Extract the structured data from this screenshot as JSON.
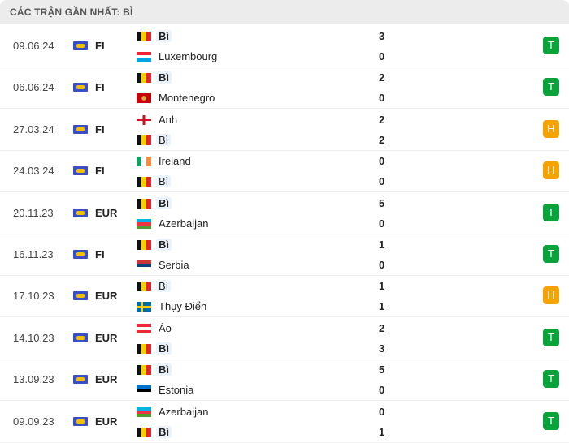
{
  "header": {
    "title": "CÁC TRẬN GẦN NHẤT: BÌ"
  },
  "colors": {
    "win": "#0aa33b",
    "draw": "#f5a300"
  },
  "matches": [
    {
      "date": "09.06.24",
      "comp": "FI",
      "home": {
        "name": "Bì",
        "flag": "belgium",
        "score": "3"
      },
      "away": {
        "name": "Luxembourg",
        "flag": "luxembourg",
        "score": "0"
      },
      "result": "T"
    },
    {
      "date": "06.06.24",
      "comp": "FI",
      "home": {
        "name": "Bì",
        "flag": "belgium",
        "score": "2"
      },
      "away": {
        "name": "Montenegro",
        "flag": "montenegro",
        "score": "0"
      },
      "result": "T"
    },
    {
      "date": "27.03.24",
      "comp": "FI",
      "home": {
        "name": "Anh",
        "flag": "england",
        "score": "2"
      },
      "away": {
        "name": "Bì",
        "flag": "belgium",
        "score": "2"
      },
      "result": "H"
    },
    {
      "date": "24.03.24",
      "comp": "FI",
      "home": {
        "name": "Ireland",
        "flag": "ireland",
        "score": "0"
      },
      "away": {
        "name": "Bì",
        "flag": "belgium",
        "score": "0"
      },
      "result": "H"
    },
    {
      "date": "20.11.23",
      "comp": "EUR",
      "home": {
        "name": "Bì",
        "flag": "belgium",
        "score": "5"
      },
      "away": {
        "name": "Azerbaijan",
        "flag": "azerbaijan",
        "score": "0"
      },
      "result": "T"
    },
    {
      "date": "16.11.23",
      "comp": "FI",
      "home": {
        "name": "Bì",
        "flag": "belgium",
        "score": "1"
      },
      "away": {
        "name": "Serbia",
        "flag": "serbia",
        "score": "0"
      },
      "result": "T"
    },
    {
      "date": "17.10.23",
      "comp": "EUR",
      "home": {
        "name": "Bì",
        "flag": "belgium",
        "score": "1"
      },
      "away": {
        "name": "Thụy Điển",
        "flag": "sweden",
        "score": "1"
      },
      "result": "H"
    },
    {
      "date": "14.10.23",
      "comp": "EUR",
      "home": {
        "name": "Áo",
        "flag": "austria",
        "score": "2"
      },
      "away": {
        "name": "Bì",
        "flag": "belgium",
        "score": "3"
      },
      "result": "T"
    },
    {
      "date": "13.09.23",
      "comp": "EUR",
      "home": {
        "name": "Bì",
        "flag": "belgium",
        "score": "5"
      },
      "away": {
        "name": "Estonia",
        "flag": "estonia",
        "score": "0"
      },
      "result": "T"
    },
    {
      "date": "09.09.23",
      "comp": "EUR",
      "home": {
        "name": "Azerbaijan",
        "flag": "azerbaijan",
        "score": "0"
      },
      "away": {
        "name": "Bì",
        "flag": "belgium",
        "score": "1"
      },
      "result": "T"
    }
  ]
}
